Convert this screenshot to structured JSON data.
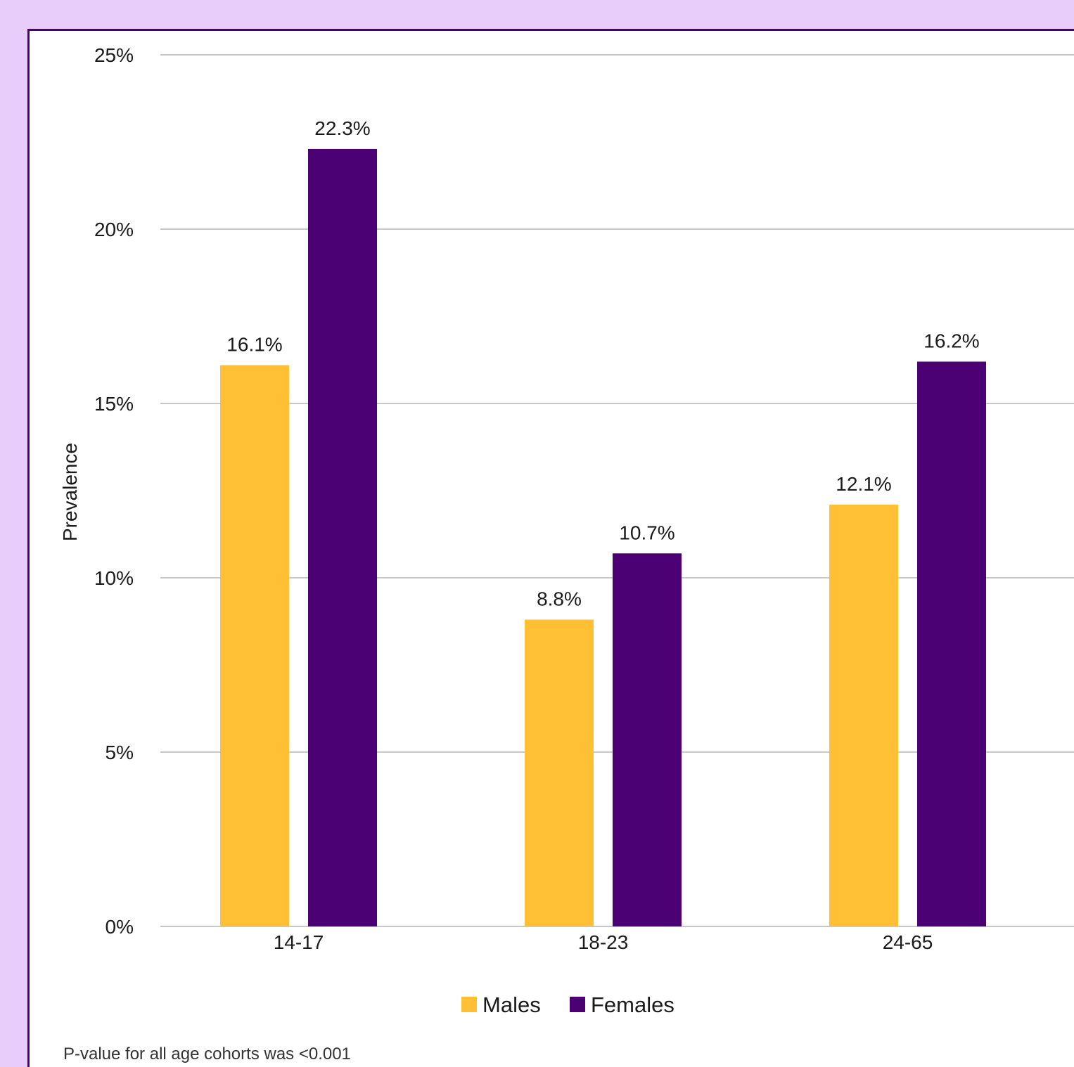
{
  "colors": {
    "background": "#E8CCF9",
    "panel_border": "#4B0074",
    "males": "#FFC036",
    "females": "#4B0074",
    "grid": "#C8C8C8"
  },
  "footnote": "P-value for all age cohorts was <0.001",
  "chart_data": {
    "type": "bar",
    "categories": [
      "14-17",
      "18-23",
      "24-65"
    ],
    "series": [
      {
        "name": "Males",
        "values": [
          16.1,
          8.8,
          12.1
        ],
        "labels": [
          "16.1%",
          "8.8%",
          "12.1%"
        ]
      },
      {
        "name": "Females",
        "values": [
          22.3,
          10.7,
          16.2
        ],
        "labels": [
          "22.3%",
          "10.7%",
          "16.2%"
        ]
      }
    ],
    "title": "",
    "xlabel": "",
    "ylabel": "Prevalence",
    "ylim": [
      0,
      25
    ],
    "yticks": [
      0,
      5,
      10,
      15,
      20,
      25
    ],
    "ytick_labels": [
      "0%",
      "5%",
      "10%",
      "15%",
      "20%",
      "25%"
    ],
    "grid": true,
    "legend": "bottom-center"
  }
}
